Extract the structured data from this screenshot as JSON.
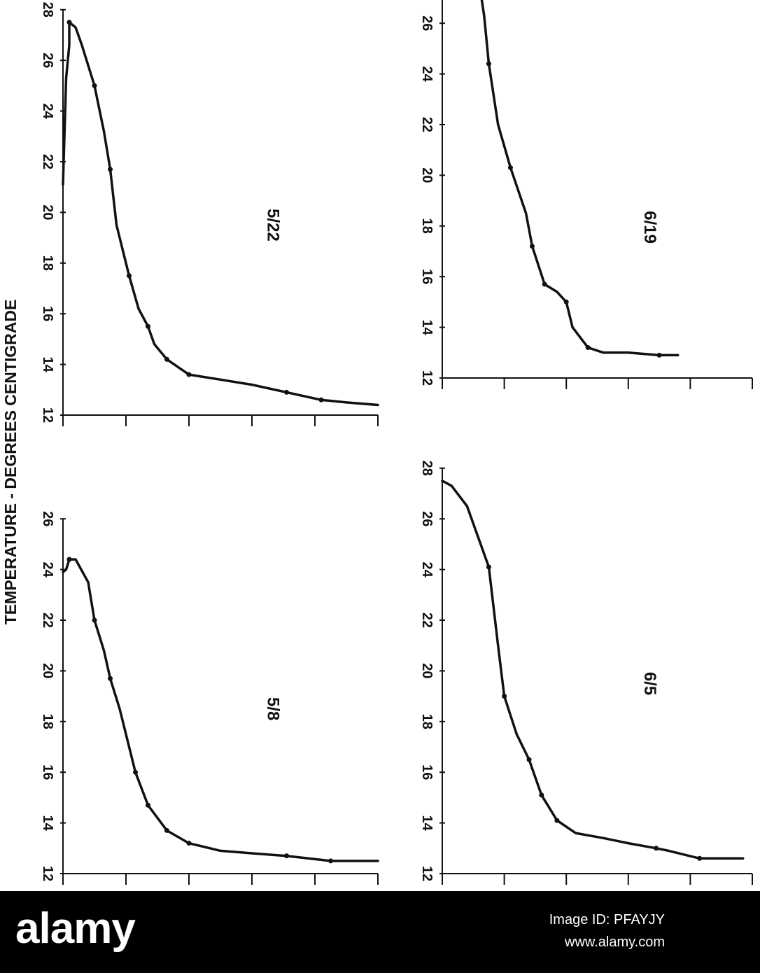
{
  "page_title": "TEMPERATURE - DEGREES CENTIGRADE",
  "chart_data": [
    {
      "type": "line",
      "panel": "5/22",
      "title": "5/22",
      "ylabel": "TEMPERATURE - DEGREES CENTIGRADE",
      "xlabel": "",
      "x_ticks": [
        12,
        14,
        16,
        18,
        20,
        22,
        24,
        26,
        28
      ],
      "y_ticks": [
        0,
        2,
        4,
        6,
        8,
        10
      ],
      "xlim": [
        12,
        28
      ],
      "ylim": [
        0,
        10
      ],
      "series": [
        {
          "points": [
            [
              21.1,
              0
            ],
            [
              25.3,
              0.1
            ],
            [
              26.6,
              0.2
            ],
            [
              27.5,
              0.2
            ],
            [
              27.3,
              0.4
            ],
            [
              26.6,
              0.6
            ],
            [
              25.0,
              1.0
            ],
            [
              23.2,
              1.3
            ],
            [
              21.7,
              1.5
            ],
            [
              19.5,
              1.7
            ],
            [
              17.5,
              2.1
            ],
            [
              16.2,
              2.4
            ],
            [
              15.5,
              2.7
            ],
            [
              14.8,
              2.9
            ],
            [
              14.2,
              3.3
            ],
            [
              13.6,
              4.0
            ],
            [
              13.4,
              5.0
            ],
            [
              13.2,
              6.0
            ],
            [
              12.9,
              7.1
            ],
            [
              12.6,
              8.2
            ],
            [
              12.5,
              9.0
            ],
            [
              12.4,
              10.0
            ]
          ]
        }
      ],
      "markers": [
        [
          27.5,
          0.2
        ],
        [
          25.0,
          1.0
        ],
        [
          21.7,
          1.5
        ],
        [
          17.5,
          2.1
        ],
        [
          15.5,
          2.7
        ],
        [
          14.2,
          3.3
        ],
        [
          13.6,
          4.0
        ],
        [
          12.9,
          7.1
        ],
        [
          12.6,
          8.2
        ]
      ]
    },
    {
      "type": "line",
      "panel": "6/19",
      "title": "6/19",
      "ylabel": "TEMPERATURE - DEGREES CENTIGRADE",
      "xlabel": "",
      "x_ticks": [
        12,
        14,
        16,
        18,
        20,
        22,
        24,
        26
      ],
      "y_ticks": [
        0,
        2,
        4,
        6,
        8,
        10
      ],
      "xlim": [
        12,
        27.5
      ],
      "ylim": [
        0,
        10
      ],
      "series": [
        {
          "points": [
            [
              27.5,
              1.2
            ],
            [
              26.3,
              1.35
            ],
            [
              24.4,
              1.5
            ],
            [
              22.0,
              1.8
            ],
            [
              20.3,
              2.2
            ],
            [
              18.5,
              2.7
            ],
            [
              17.2,
              2.9
            ],
            [
              15.7,
              3.3
            ],
            [
              15.4,
              3.7
            ],
            [
              15.0,
              4.0
            ],
            [
              14.0,
              4.2
            ],
            [
              13.2,
              4.7
            ],
            [
              13.0,
              5.2
            ],
            [
              13.0,
              6.0
            ],
            [
              12.9,
              7.0
            ],
            [
              12.9,
              7.6
            ]
          ]
        }
      ],
      "markers": [
        [
          24.4,
          1.5
        ],
        [
          20.3,
          2.2
        ],
        [
          17.2,
          2.9
        ],
        [
          15.7,
          3.3
        ],
        [
          15.0,
          4.0
        ],
        [
          13.2,
          4.7
        ],
        [
          12.9,
          7.0
        ]
      ]
    },
    {
      "type": "line",
      "panel": "5/8",
      "title": "5/8",
      "ylabel": "TEMPERATURE - DEGREES CENTIGRADE",
      "xlabel": "",
      "x_ticks": [
        12,
        14,
        16,
        18,
        20,
        22,
        24,
        26
      ],
      "y_ticks": [
        0,
        2,
        4,
        6,
        8,
        10
      ],
      "xlim": [
        12,
        26
      ],
      "ylim": [
        0,
        10
      ],
      "series": [
        {
          "points": [
            [
              23.9,
              0
            ],
            [
              24.0,
              0.1
            ],
            [
              24.4,
              0.2
            ],
            [
              24.4,
              0.4
            ],
            [
              23.5,
              0.8
            ],
            [
              22.0,
              1.0
            ],
            [
              20.8,
              1.3
            ],
            [
              19.7,
              1.5
            ],
            [
              18.5,
              1.8
            ],
            [
              16.0,
              2.3
            ],
            [
              14.7,
              2.7
            ],
            [
              13.7,
              3.3
            ],
            [
              13.2,
              4.0
            ],
            [
              12.9,
              5.0
            ],
            [
              12.8,
              6.0
            ],
            [
              12.7,
              7.1
            ],
            [
              12.5,
              8.5
            ],
            [
              12.5,
              10.0
            ]
          ]
        }
      ],
      "markers": [
        [
          24.4,
          0.2
        ],
        [
          22.0,
          1.0
        ],
        [
          19.7,
          1.5
        ],
        [
          16.0,
          2.3
        ],
        [
          14.7,
          2.7
        ],
        [
          13.7,
          3.3
        ],
        [
          13.2,
          4.0
        ],
        [
          12.7,
          7.1
        ],
        [
          12.5,
          8.5
        ]
      ]
    },
    {
      "type": "line",
      "panel": "6/5",
      "title": "6/5",
      "ylabel": "TEMPERATURE - DEGREES CENTIGRADE",
      "xlabel": "",
      "x_ticks": [
        12,
        14,
        16,
        18,
        20,
        22,
        24,
        26,
        28
      ],
      "y_ticks": [
        0,
        2,
        4,
        6,
        8,
        10
      ],
      "xlim": [
        12,
        28
      ],
      "ylim": [
        0,
        10
      ],
      "series": [
        {
          "points": [
            [
              27.5,
              0
            ],
            [
              27.3,
              0.3
            ],
            [
              26.5,
              0.8
            ],
            [
              24.1,
              1.5
            ],
            [
              21.0,
              1.8
            ],
            [
              19.0,
              2.0
            ],
            [
              17.5,
              2.4
            ],
            [
              16.5,
              2.8
            ],
            [
              15.1,
              3.2
            ],
            [
              14.1,
              3.7
            ],
            [
              13.6,
              4.3
            ],
            [
              13.4,
              5.2
            ],
            [
              13.2,
              6.0
            ],
            [
              13.0,
              6.9
            ],
            [
              12.9,
              7.3
            ],
            [
              12.6,
              8.3
            ],
            [
              12.6,
              9.2
            ],
            [
              12.6,
              9.7
            ]
          ]
        }
      ],
      "markers": [
        [
          24.1,
          1.5
        ],
        [
          19.0,
          2.0
        ],
        [
          16.5,
          2.8
        ],
        [
          15.1,
          3.2
        ],
        [
          14.1,
          3.7
        ],
        [
          13.0,
          6.9
        ],
        [
          12.6,
          8.3
        ]
      ]
    }
  ],
  "watermark": {
    "logo_text": "alamy",
    "image_id": "Image ID: PFAYJY",
    "url": "www.alamy.com"
  },
  "colors": {
    "ink": "#111111",
    "background": "#ffffff",
    "banner": "#000000",
    "banner_text": "#ffffff"
  }
}
